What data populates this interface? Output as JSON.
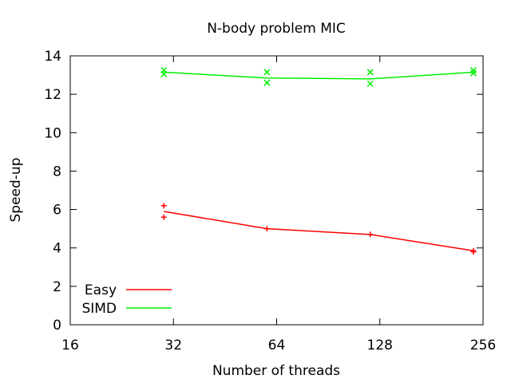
{
  "chart_data": {
    "type": "line",
    "title": "N-body problem MIC",
    "xlabel": "Number of threads",
    "ylabel": "Speed-up",
    "xscale": "log2",
    "xlim": [
      16,
      256
    ],
    "ylim": [
      0,
      14
    ],
    "xticks": [
      16,
      32,
      64,
      128,
      256
    ],
    "xtick_labels": [
      "16",
      "32",
      "64",
      "128",
      "256"
    ],
    "yticks": [
      0,
      2,
      4,
      6,
      8,
      10,
      12,
      14
    ],
    "ytick_labels": [
      "0",
      "2",
      "4",
      "6",
      "8",
      "10",
      "12",
      "14"
    ],
    "grid": false,
    "legend_position": "bottom-left",
    "series": [
      {
        "name": "Easy",
        "color": "#ff0000",
        "marker": "plus",
        "line": {
          "x": [
            30,
            60,
            120,
            240
          ],
          "y": [
            5.9,
            5.0,
            4.7,
            3.85
          ]
        },
        "points": {
          "x": [
            30,
            30,
            60,
            120,
            240,
            240
          ],
          "y": [
            6.2,
            5.6,
            5.0,
            4.7,
            3.8,
            3.85
          ]
        }
      },
      {
        "name": "SIMD",
        "color": "#00ee00",
        "marker": "cross",
        "line": {
          "x": [
            30,
            60,
            120,
            240
          ],
          "y": [
            13.15,
            12.85,
            12.8,
            13.15
          ]
        },
        "points": {
          "x": [
            30,
            30,
            60,
            60,
            120,
            120,
            240,
            240
          ],
          "y": [
            13.25,
            13.05,
            13.15,
            12.6,
            13.15,
            12.55,
            13.25,
            13.1
          ]
        }
      }
    ]
  }
}
